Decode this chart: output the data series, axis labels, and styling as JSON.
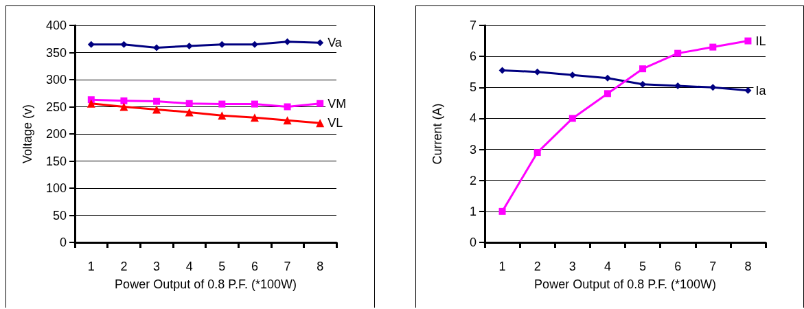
{
  "chart_data": [
    {
      "type": "line",
      "xlabel": "Power Output of 0.8 P.F. (*100W)",
      "ylabel": "Voltage (v)",
      "categories": [
        "1",
        "2",
        "3",
        "4",
        "5",
        "6",
        "7",
        "8"
      ],
      "ylim": [
        0,
        400
      ],
      "yticks": [
        0,
        50,
        100,
        150,
        200,
        250,
        300,
        350,
        400
      ],
      "grid": "y",
      "series": [
        {
          "name": "Va",
          "color": "#000080",
          "marker": "diamond",
          "values": [
            365,
            365,
            359,
            362,
            365,
            365,
            370,
            368
          ]
        },
        {
          "name": "VM",
          "color": "#ff00ff",
          "marker": "square",
          "values": [
            263,
            261,
            260,
            256,
            255,
            255,
            250,
            256
          ]
        },
        {
          "name": "VL",
          "color": "#ff0000",
          "marker": "triangle",
          "values": [
            256,
            250,
            245,
            240,
            234,
            230,
            225,
            220
          ]
        }
      ]
    },
    {
      "type": "line",
      "xlabel": "Power Output of 0.8 P.F. (*100W)",
      "ylabel": "Current (A)",
      "categories": [
        "1",
        "2",
        "3",
        "4",
        "5",
        "6",
        "7",
        "8"
      ],
      "ylim": [
        0,
        7
      ],
      "yticks": [
        0,
        1,
        2,
        3,
        4,
        5,
        6,
        7
      ],
      "grid": "y",
      "series": [
        {
          "name": "Ia",
          "color": "#000080",
          "marker": "diamond",
          "values": [
            5.55,
            5.5,
            5.4,
            5.3,
            5.1,
            5.05,
            5.0,
            4.9
          ]
        },
        {
          "name": "IL",
          "color": "#ff00ff",
          "marker": "square",
          "values": [
            1.0,
            2.9,
            4.0,
            4.8,
            5.6,
            6.1,
            6.3,
            6.5
          ]
        }
      ]
    }
  ]
}
